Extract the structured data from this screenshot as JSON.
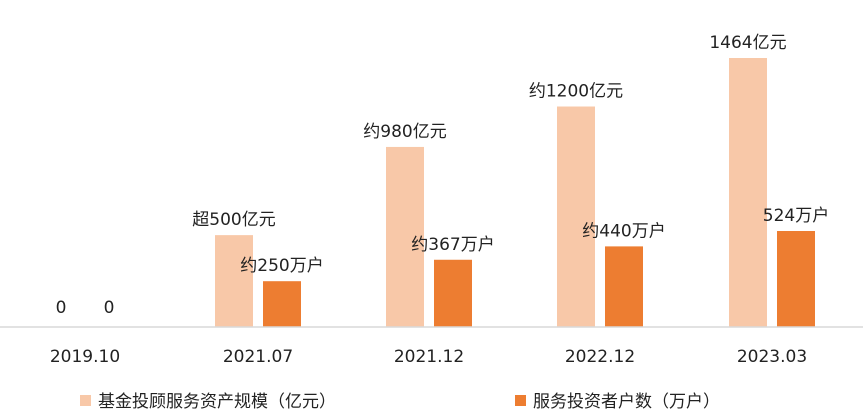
{
  "chart_data": {
    "type": "bar",
    "categories": [
      "2019.10",
      "2021.07",
      "2021.12",
      "2022.12",
      "2023.03"
    ],
    "series": [
      {
        "name": "基金投顾服务资产规模（亿元）",
        "color": "#F8C8A8",
        "values": [
          0,
          500,
          980,
          1200,
          1464
        ],
        "labels": [
          "0",
          "超500亿元",
          "约980亿元",
          "约1200亿元",
          "1464亿元"
        ]
      },
      {
        "name": "服务投资者户数（万户）",
        "color": "#ED7D31",
        "values": [
          0,
          250,
          367,
          440,
          524
        ],
        "labels": [
          "0",
          "约250万户",
          "约367万户",
          "约440万户",
          "524万户"
        ]
      }
    ],
    "legend_position": "bottom",
    "grid": false
  }
}
